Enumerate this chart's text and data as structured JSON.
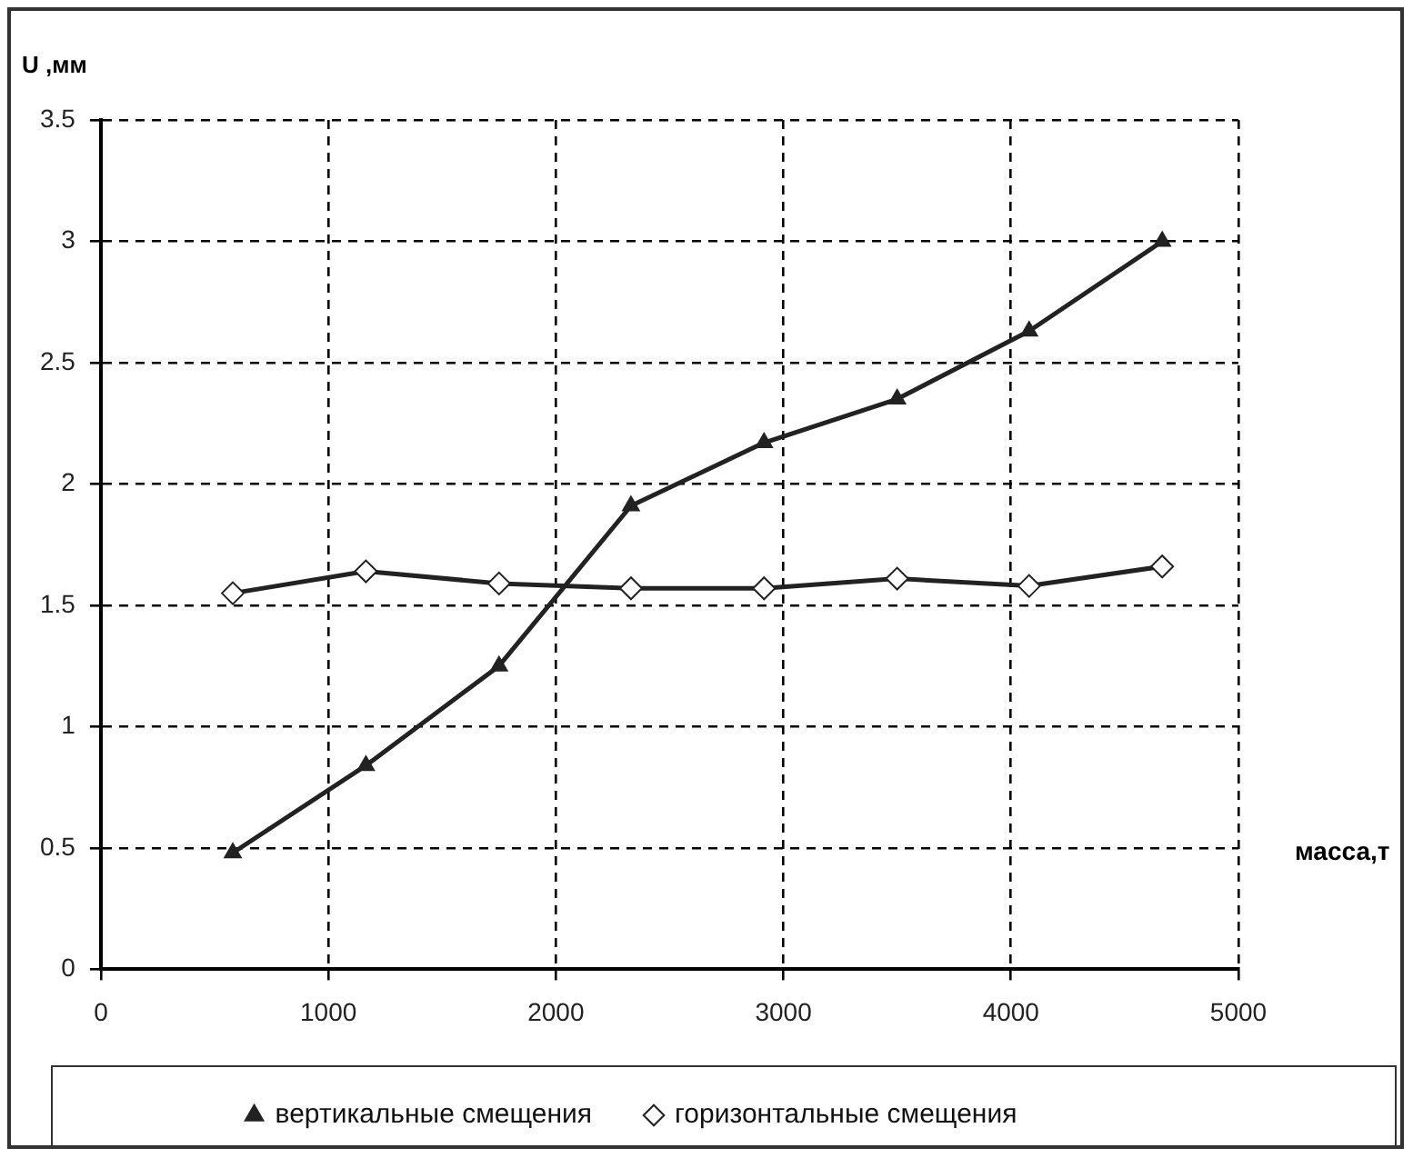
{
  "chart_data": {
    "type": "line",
    "xlabel": "масса,т",
    "ylabel": "U ,мм",
    "xlim": [
      0,
      5000
    ],
    "xticks": [
      0,
      1000,
      2000,
      3000,
      4000,
      5000
    ],
    "ylim": [
      0,
      3.5
    ],
    "yticks": [
      0,
      0.5,
      1,
      1.5,
      2,
      2.5,
      3,
      3.5
    ],
    "grid": true,
    "legend": "bottom",
    "series": [
      {
        "name": "вертикальные смещения",
        "color": "#222222",
        "marker": "triangle",
        "x": [
          580,
          1165,
          1750,
          2330,
          2915,
          3500,
          4080,
          4665
        ],
        "values": [
          0.48,
          0.84,
          1.25,
          1.91,
          2.17,
          2.35,
          2.63,
          3.0
        ]
      },
      {
        "name": "горизонтальные смещения",
        "color": "#222222",
        "marker": "diamond",
        "x": [
          580,
          1165,
          1750,
          2330,
          2915,
          3500,
          4080,
          4665
        ],
        "values": [
          1.55,
          1.64,
          1.59,
          1.57,
          1.57,
          1.61,
          1.58,
          1.66
        ]
      }
    ]
  }
}
